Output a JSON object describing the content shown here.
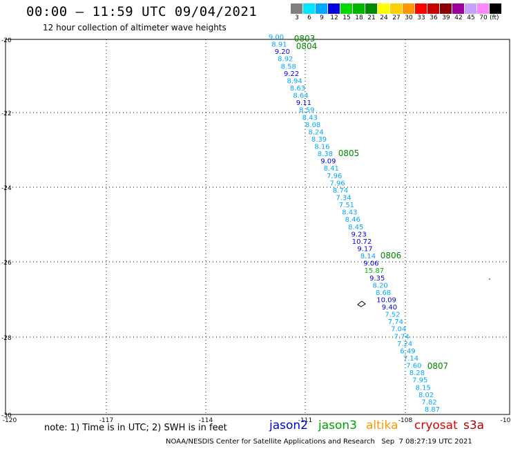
{
  "title": "00:00 – 11:59 UTC 09/04/2021",
  "subtitle": "12 hour collection of altimeter wave heights",
  "legend": {
    "unit": "(ft)",
    "bins": [
      {
        "label": "3",
        "color": "#7f7f7f"
      },
      {
        "label": "6",
        "color": "#00e5ff"
      },
      {
        "label": "9",
        "color": "#00a8ff"
      },
      {
        "label": "12",
        "color": "#0000e0"
      },
      {
        "label": "15",
        "color": "#00d800"
      },
      {
        "label": "18",
        "color": "#00b400"
      },
      {
        "label": "21",
        "color": "#008800"
      },
      {
        "label": "24",
        "color": "#ffff00"
      },
      {
        "label": "27",
        "color": "#ffd000"
      },
      {
        "label": "30",
        "color": "#ff9800"
      },
      {
        "label": "33",
        "color": "#ff0000"
      },
      {
        "label": "36",
        "color": "#c80000"
      },
      {
        "label": "39",
        "color": "#8a0000"
      },
      {
        "label": "42",
        "color": "#9b009b"
      },
      {
        "label": "45",
        "color": "#c8a0ff"
      },
      {
        "label": "70",
        "color": "#ff88ff"
      },
      {
        "label": "",
        "color": "#000000"
      }
    ]
  },
  "axes": {
    "lat_ticks": [
      "-20",
      "-22",
      "-24",
      "-26",
      "-28",
      "-30"
    ],
    "lon_ticks": [
      "-120",
      "-117",
      "-114",
      "-111",
      "-108",
      "-10"
    ]
  },
  "track": [
    {
      "v": "9.00",
      "c": "#00a8ff"
    },
    {
      "v": "8.91",
      "c": "#00a8ff"
    },
    {
      "v": "9.20",
      "c": "#0000e0"
    },
    {
      "v": "8.92",
      "c": "#00a8ff"
    },
    {
      "v": "8.58",
      "c": "#00a8ff"
    },
    {
      "v": "9.22",
      "c": "#0000e0"
    },
    {
      "v": "8.94",
      "c": "#00a8ff"
    },
    {
      "v": "8.63",
      "c": "#00a8ff"
    },
    {
      "v": "8.64",
      "c": "#00a8ff"
    },
    {
      "v": "9.11",
      "c": "#0000e0"
    },
    {
      "v": "8.59",
      "c": "#00a8ff"
    },
    {
      "v": "8.43",
      "c": "#00a8ff"
    },
    {
      "v": "8.08",
      "c": "#00a8ff"
    },
    {
      "v": "8.24",
      "c": "#00a8ff"
    },
    {
      "v": "8.39",
      "c": "#00a8ff"
    },
    {
      "v": "8.16",
      "c": "#00a8ff"
    },
    {
      "v": "8.38",
      "c": "#00a8ff"
    },
    {
      "v": "9.09",
      "c": "#0000e0"
    },
    {
      "v": "8.41",
      "c": "#00a8ff"
    },
    {
      "v": "7.96",
      "c": "#00a8ff"
    },
    {
      "v": "7.96",
      "c": "#00a8ff"
    },
    {
      "v": "8.74",
      "c": "#00a8ff"
    },
    {
      "v": "7.34",
      "c": "#00a8ff"
    },
    {
      "v": "7.51",
      "c": "#00a8ff"
    },
    {
      "v": "8.43",
      "c": "#00a8ff"
    },
    {
      "v": "8.46",
      "c": "#00a8ff"
    },
    {
      "v": "8.45",
      "c": "#00a8ff"
    },
    {
      "v": "9.23",
      "c": "#0000e0"
    },
    {
      "v": "10.72",
      "c": "#0000e0"
    },
    {
      "v": "9.17",
      "c": "#0000e0"
    },
    {
      "v": "8.14",
      "c": "#00a8ff"
    },
    {
      "v": "9.06",
      "c": "#0000e0"
    },
    {
      "v": "15.87",
      "c": "#00b400"
    },
    {
      "v": "9.35",
      "c": "#0000e0"
    },
    {
      "v": "8.20",
      "c": "#00a8ff"
    },
    {
      "v": "8.68",
      "c": "#00a8ff"
    },
    {
      "v": "10.09",
      "c": "#0000e0"
    },
    {
      "v": "9.40",
      "c": "#0000e0"
    },
    {
      "v": "7.52",
      "c": "#00a8ff"
    },
    {
      "v": "7.74",
      "c": "#00a8ff"
    },
    {
      "v": "7.04",
      "c": "#00a8ff"
    },
    {
      "v": "7.74",
      "c": "#00a8ff"
    },
    {
      "v": "7.24",
      "c": "#00a8ff"
    },
    {
      "v": "6.49",
      "c": "#00a8ff"
    },
    {
      "v": "7.14",
      "c": "#00a8ff"
    },
    {
      "v": "7.60",
      "c": "#00a8ff"
    },
    {
      "v": "8.28",
      "c": "#00a8ff"
    },
    {
      "v": "7.95",
      "c": "#00a8ff"
    },
    {
      "v": "8.15",
      "c": "#00a8ff"
    },
    {
      "v": "8.02",
      "c": "#00a8ff"
    },
    {
      "v": "7.82",
      "c": "#00a8ff"
    },
    {
      "v": "8.87",
      "c": "#00a8ff"
    }
  ],
  "time_labels": [
    "0803",
    "0804",
    "0805",
    "0806",
    "0807"
  ],
  "note": "note: 1) Time is in UTC; 2) SWH is in feet",
  "satellites": [
    {
      "name": "jason2",
      "color": "#0000e0"
    },
    {
      "name": "jason3",
      "color": "#00a000"
    },
    {
      "name": "altika",
      "color": "#ff9800"
    },
    {
      "name": "cryosat",
      "color": "#e00000"
    },
    {
      "name": "s3a",
      "color": "#b00000"
    }
  ],
  "footer": "NOAA/NESDIS Center for Satellite Applications and Research   Sep  7 08:27:19 UTC 2021"
}
